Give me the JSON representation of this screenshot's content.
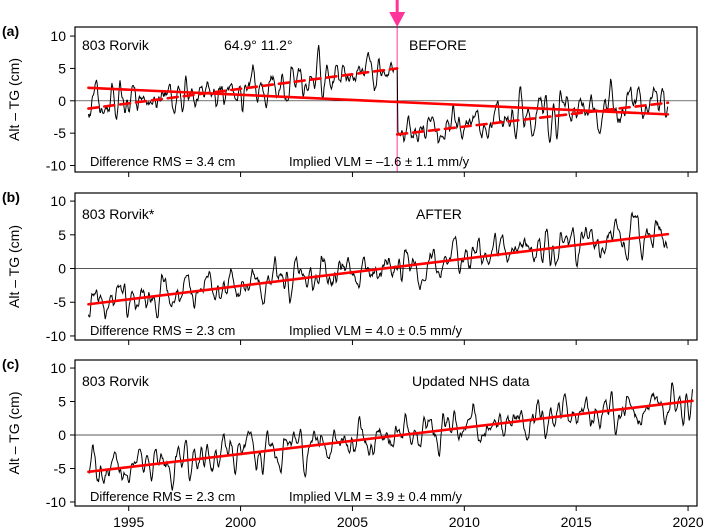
{
  "figure": {
    "x_ticks": [
      "1995",
      "2000",
      "2005",
      "2010",
      "2015",
      "2020"
    ],
    "y_ticks": [
      "10",
      "5",
      "0",
      "-5",
      "-10"
    ],
    "ylabel": "Alt – TG (cm)"
  },
  "chart_data": [
    {
      "type": "line",
      "panel": "(a)",
      "title": "803 Rorvik",
      "coords": "64.9°   11.2°",
      "tag": "BEFORE",
      "stats": "Difference RMS =  3.4 cm",
      "vlm": "Implied VLM = –1.6 ± 1.1 mm/y",
      "ylabel": "Alt – TG (cm)",
      "xlim": [
        1992.6,
        2020.4
      ],
      "ylim": [
        -11,
        11.4
      ],
      "seed": 11,
      "break_year": 2007.0,
      "series": [
        {
          "name": "Alt - TG difference",
          "color": "#000000",
          "x_start": 1993.2,
          "x_end": 2019.1,
          "amplitude": 2.6,
          "segments": [
            {
              "from": 1993.2,
              "to": 2007.0,
              "trend": [
                -1.2,
                5.0
              ]
            },
            {
              "from": 2007.0,
              "to": 2019.1,
              "trend": [
                -5.2,
                0.0
              ]
            }
          ]
        },
        {
          "name": "overall trend",
          "color": "#ff0000",
          "style": "solid",
          "x": [
            1993.2,
            2019.1
          ],
          "y": [
            2.0,
            -2.1
          ]
        },
        {
          "name": "trend before break",
          "color": "#ff0000",
          "style": "dashed",
          "x": [
            1993.2,
            2007.0
          ],
          "y": [
            -1.2,
            5.0
          ]
        },
        {
          "name": "trend after break",
          "color": "#ff0000",
          "style": "dashed",
          "x": [
            2007.0,
            2019.1
          ],
          "y": [
            -5.2,
            -0.3
          ]
        }
      ],
      "marker": {
        "year": 2007.0,
        "color": "#ff3399"
      }
    },
    {
      "type": "line",
      "panel": "(b)",
      "title": "803 Rorvik*",
      "tag": "AFTER",
      "stats": "Difference RMS =  2.3 cm",
      "vlm": "Implied VLM =  4.0 ± 0.5 mm/y",
      "ylabel": "Alt – TG (cm)",
      "xlim": [
        1992.6,
        2020.4
      ],
      "ylim": [
        -10.6,
        11.2
      ],
      "seed": 23,
      "series": [
        {
          "name": "Alt - TG difference",
          "color": "#000000",
          "x_start": 1993.2,
          "x_end": 2019.1,
          "amplitude": 2.3,
          "segments": [
            {
              "from": 1993.2,
              "to": 2019.1,
              "trend": [
                -5.3,
                5.3
              ]
            }
          ]
        },
        {
          "name": "linear trend",
          "color": "#ff0000",
          "style": "solid",
          "x": [
            1993.2,
            2019.1
          ],
          "y": [
            -5.3,
            5.1
          ]
        }
      ]
    },
    {
      "type": "line",
      "panel": "(c)",
      "title": "803 Rorvik",
      "tag": "Updated NHS data",
      "stats": "Difference RMS =  2.3 cm",
      "vlm": "Implied VLM =  3.9 ± 0.4 mm/y",
      "ylabel": "Alt – TG (cm)",
      "xlim": [
        1992.6,
        2020.4
      ],
      "ylim": [
        -10.6,
        11.2
      ],
      "seed": 37,
      "series": [
        {
          "name": "Alt - TG difference",
          "color": "#000000",
          "x_start": 1993.2,
          "x_end": 2020.2,
          "amplitude": 2.3,
          "segments": [
            {
              "from": 1993.2,
              "to": 2020.2,
              "trend": [
                -5.5,
                5.3
              ]
            }
          ]
        },
        {
          "name": "linear trend",
          "color": "#ff0000",
          "style": "solid",
          "x": [
            1993.2,
            2020.2
          ],
          "y": [
            -5.5,
            5.1
          ]
        }
      ]
    }
  ]
}
